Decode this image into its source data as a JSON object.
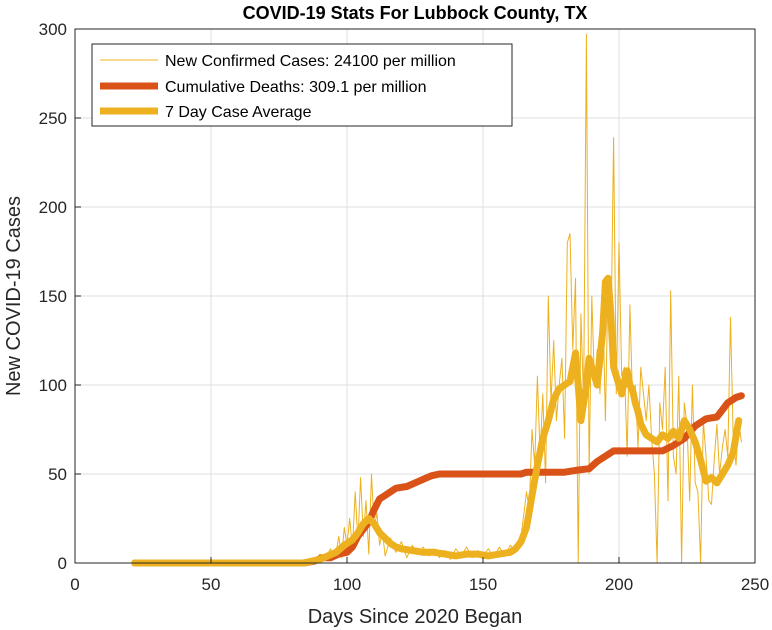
{
  "chart_data": {
    "type": "line",
    "title": "COVID-19 Stats For Lubbock County, TX",
    "xlabel": "Days Since 2020 Began",
    "ylabel": "New COVID-19 Cases",
    "xlim": [
      0,
      250
    ],
    "ylim": [
      0,
      300
    ],
    "xticks": [
      0,
      50,
      100,
      150,
      200,
      250
    ],
    "yticks": [
      0,
      50,
      100,
      150,
      200,
      250,
      300
    ],
    "grid": true,
    "legend_position": "top-left",
    "series": [
      {
        "name": "New Confirmed Cases: 24100 per million",
        "color": "#EDB120",
        "width": "thin",
        "points": [
          [
            83,
            0
          ],
          [
            86,
            2
          ],
          [
            88,
            0
          ],
          [
            90,
            5
          ],
          [
            92,
            3
          ],
          [
            94,
            8
          ],
          [
            95,
            2
          ],
          [
            96,
            6
          ],
          [
            97,
            15
          ],
          [
            98,
            3
          ],
          [
            99,
            20
          ],
          [
            100,
            10
          ],
          [
            101,
            25
          ],
          [
            102,
            8
          ],
          [
            103,
            40
          ],
          [
            104,
            12
          ],
          [
            105,
            48
          ],
          [
            106,
            15
          ],
          [
            107,
            35
          ],
          [
            108,
            5
          ],
          [
            109,
            50
          ],
          [
            110,
            20
          ],
          [
            111,
            28
          ],
          [
            112,
            10
          ],
          [
            113,
            18
          ],
          [
            114,
            4
          ],
          [
            116,
            14
          ],
          [
            118,
            6
          ],
          [
            120,
            12
          ],
          [
            122,
            3
          ],
          [
            124,
            10
          ],
          [
            126,
            5
          ],
          [
            128,
            9
          ],
          [
            130,
            4
          ],
          [
            132,
            8
          ],
          [
            134,
            3
          ],
          [
            136,
            7
          ],
          [
            138,
            2
          ],
          [
            140,
            8
          ],
          [
            142,
            4
          ],
          [
            144,
            9
          ],
          [
            146,
            3
          ],
          [
            148,
            7
          ],
          [
            150,
            4
          ],
          [
            152,
            8
          ],
          [
            154,
            3
          ],
          [
            156,
            9
          ],
          [
            158,
            4
          ],
          [
            160,
            10
          ],
          [
            162,
            6
          ],
          [
            164,
            15
          ],
          [
            166,
            40
          ],
          [
            167,
            30
          ],
          [
            168,
            75
          ],
          [
            169,
            55
          ],
          [
            170,
            105
          ],
          [
            171,
            60
          ],
          [
            172,
            95
          ],
          [
            173,
            45
          ],
          [
            174,
            150
          ],
          [
            175,
            90
          ],
          [
            176,
            125
          ],
          [
            177,
            80
          ],
          [
            178,
            100
          ],
          [
            179,
            115
          ],
          [
            180,
            70
          ],
          [
            181,
            180
          ],
          [
            182,
            185
          ],
          [
            183,
            120
          ],
          [
            184,
            160
          ],
          [
            185,
            0
          ],
          [
            186,
            140
          ],
          [
            187,
            90
          ],
          [
            188,
            297
          ],
          [
            189,
            50
          ],
          [
            190,
            150
          ],
          [
            191,
            100
          ],
          [
            192,
            120
          ],
          [
            193,
            95
          ],
          [
            194,
            150
          ],
          [
            195,
            80
          ],
          [
            196,
            160
          ],
          [
            197,
            120
          ],
          [
            198,
            239
          ],
          [
            199,
            95
          ],
          [
            200,
            180
          ],
          [
            201,
            105
          ],
          [
            202,
            110
          ],
          [
            203,
            60
          ],
          [
            204,
            145
          ],
          [
            205,
            90
          ],
          [
            206,
            100
          ],
          [
            207,
            65
          ],
          [
            208,
            110
          ],
          [
            209,
            95
          ],
          [
            210,
            80
          ],
          [
            211,
            100
          ],
          [
            212,
            70
          ],
          [
            213,
            50
          ],
          [
            214,
            0
          ],
          [
            215,
            90
          ],
          [
            216,
            75
          ],
          [
            217,
            110
          ],
          [
            218,
            35
          ],
          [
            219,
            153
          ],
          [
            220,
            60
          ],
          [
            221,
            50
          ],
          [
            222,
            105
          ],
          [
            223,
            0
          ],
          [
            224,
            90
          ],
          [
            225,
            78
          ],
          [
            226,
            35
          ],
          [
            227,
            100
          ],
          [
            228,
            45
          ],
          [
            229,
            40
          ],
          [
            230,
            0
          ],
          [
            231,
            80
          ],
          [
            232,
            60
          ],
          [
            233,
            35
          ],
          [
            234,
            33
          ],
          [
            235,
            58
          ],
          [
            236,
            78
          ],
          [
            237,
            50
          ],
          [
            238,
            65
          ],
          [
            239,
            75
          ],
          [
            240,
            60
          ],
          [
            241,
            138
          ],
          [
            242,
            70
          ],
          [
            243,
            55
          ],
          [
            244,
            80
          ],
          [
            245,
            68
          ]
        ]
      },
      {
        "name": "Cumulative Deaths: 309.1 per million",
        "color": "#D95319",
        "width": "thick",
        "points": [
          [
            22,
            0
          ],
          [
            84,
            0
          ],
          [
            88,
            1
          ],
          [
            91,
            3
          ],
          [
            94,
            3
          ],
          [
            97,
            5
          ],
          [
            100,
            6
          ],
          [
            102,
            9
          ],
          [
            104,
            15
          ],
          [
            106,
            19
          ],
          [
            108,
            23
          ],
          [
            110,
            30
          ],
          [
            112,
            36
          ],
          [
            114,
            38
          ],
          [
            116,
            40
          ],
          [
            118,
            42
          ],
          [
            122,
            43
          ],
          [
            125,
            45
          ],
          [
            128,
            47
          ],
          [
            131,
            49
          ],
          [
            134,
            50
          ],
          [
            164,
            50
          ],
          [
            166,
            51
          ],
          [
            180,
            51
          ],
          [
            184,
            52
          ],
          [
            189,
            53
          ],
          [
            192,
            57
          ],
          [
            196,
            61
          ],
          [
            198,
            63
          ],
          [
            216,
            63
          ],
          [
            220,
            66
          ],
          [
            224,
            70
          ],
          [
            228,
            77
          ],
          [
            232,
            81
          ],
          [
            236,
            82
          ],
          [
            238,
            86
          ],
          [
            240,
            90
          ],
          [
            243,
            93
          ],
          [
            245,
            94
          ]
        ]
      },
      {
        "name": "7 Day Case Average",
        "color": "#EDB120",
        "width": "thick",
        "points": [
          [
            22,
            0
          ],
          [
            84,
            0
          ],
          [
            87,
            1
          ],
          [
            90,
            2
          ],
          [
            93,
            4
          ],
          [
            96,
            6
          ],
          [
            99,
            10
          ],
          [
            102,
            13
          ],
          [
            104,
            17
          ],
          [
            106,
            22
          ],
          [
            108,
            25
          ],
          [
            110,
            22
          ],
          [
            112,
            17
          ],
          [
            114,
            14
          ],
          [
            116,
            11
          ],
          [
            118,
            9
          ],
          [
            120,
            8
          ],
          [
            124,
            7
          ],
          [
            128,
            6
          ],
          [
            132,
            6
          ],
          [
            136,
            5
          ],
          [
            140,
            4
          ],
          [
            144,
            5
          ],
          [
            148,
            5
          ],
          [
            152,
            4
          ],
          [
            156,
            5
          ],
          [
            160,
            6
          ],
          [
            162,
            8
          ],
          [
            164,
            12
          ],
          [
            166,
            20
          ],
          [
            168,
            38
          ],
          [
            170,
            55
          ],
          [
            172,
            70
          ],
          [
            174,
            80
          ],
          [
            176,
            92
          ],
          [
            178,
            98
          ],
          [
            180,
            100
          ],
          [
            182,
            102
          ],
          [
            183,
            110
          ],
          [
            184,
            118
          ],
          [
            185,
            100
          ],
          [
            186,
            80
          ],
          [
            187,
            90
          ],
          [
            188,
            100
          ],
          [
            189,
            115
          ],
          [
            190,
            110
          ],
          [
            191,
            105
          ],
          [
            192,
            100
          ],
          [
            193,
            115
          ],
          [
            194,
            130
          ],
          [
            195,
            158
          ],
          [
            196,
            160
          ],
          [
            197,
            140
          ],
          [
            198,
            110
          ],
          [
            199,
            105
          ],
          [
            200,
            100
          ],
          [
            201,
            95
          ],
          [
            202,
            102
          ],
          [
            203,
            108
          ],
          [
            204,
            100
          ],
          [
            205,
            97
          ],
          [
            206,
            90
          ],
          [
            207,
            85
          ],
          [
            208,
            78
          ],
          [
            210,
            72
          ],
          [
            212,
            70
          ],
          [
            214,
            68
          ],
          [
            216,
            72
          ],
          [
            218,
            70
          ],
          [
            220,
            74
          ],
          [
            222,
            70
          ],
          [
            224,
            80
          ],
          [
            226,
            75
          ],
          [
            228,
            68
          ],
          [
            230,
            58
          ],
          [
            232,
            46
          ],
          [
            234,
            48
          ],
          [
            236,
            45
          ],
          [
            238,
            50
          ],
          [
            240,
            55
          ],
          [
            242,
            62
          ],
          [
            244,
            80
          ]
        ]
      }
    ]
  }
}
